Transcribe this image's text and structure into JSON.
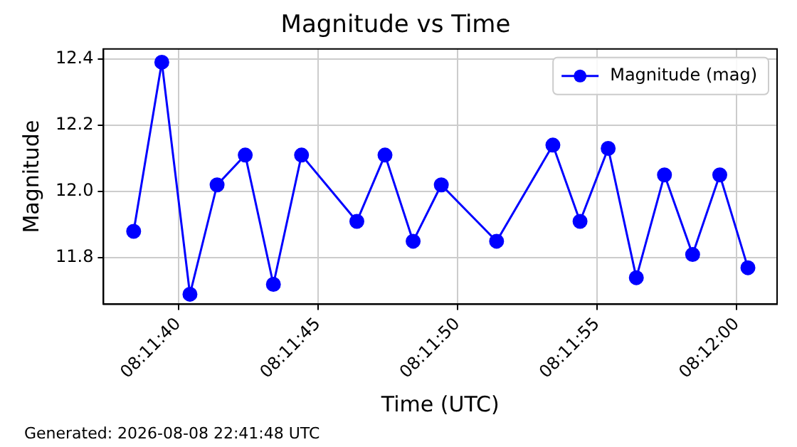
{
  "chart_data": {
    "type": "line",
    "title": "Magnitude vs Time",
    "xlabel": "Time (UTC)",
    "ylabel": "Magnitude",
    "x": [
      8.194,
      8.19428,
      8.19456,
      8.19483,
      8.19511,
      8.19539,
      8.19567,
      8.19622,
      8.1965,
      8.19678,
      8.19706,
      8.19761,
      8.19817,
      8.19844,
      8.19872,
      8.199,
      8.19928,
      8.19956,
      8.19983,
      8.20011
    ],
    "series": [
      {
        "name": "Magnitude (mag)",
        "color": "#0000ff",
        "values": [
          11.88,
          12.39,
          11.69,
          12.02,
          12.11,
          11.72,
          12.11,
          11.91,
          12.11,
          11.85,
          12.02,
          11.85,
          12.14,
          11.91,
          12.13,
          11.74,
          12.05,
          11.81,
          12.05,
          11.77
        ]
      }
    ],
    "xlim": [
      8.1937,
      8.2004
    ],
    "xticks": [
      {
        "value": 8.194444,
        "label": "08:11:40"
      },
      {
        "value": 8.195833,
        "label": "08:11:45"
      },
      {
        "value": 8.197222,
        "label": "08:11:50"
      },
      {
        "value": 8.198611,
        "label": "08:11:55"
      },
      {
        "value": 8.2,
        "label": "08:12:00"
      }
    ],
    "ylim": [
      11.66,
      12.43
    ],
    "yticks": [
      {
        "value": 11.8,
        "label": "11.8"
      },
      {
        "value": 12.0,
        "label": "12.0"
      },
      {
        "value": 12.2,
        "label": "12.2"
      },
      {
        "value": 12.4,
        "label": "12.4"
      }
    ],
    "grid": true,
    "legend": "top right",
    "marker": "circle",
    "line_style": "solid",
    "annotations": [
      "Generated: 2026-08-08 22:41:48 UTC"
    ]
  }
}
